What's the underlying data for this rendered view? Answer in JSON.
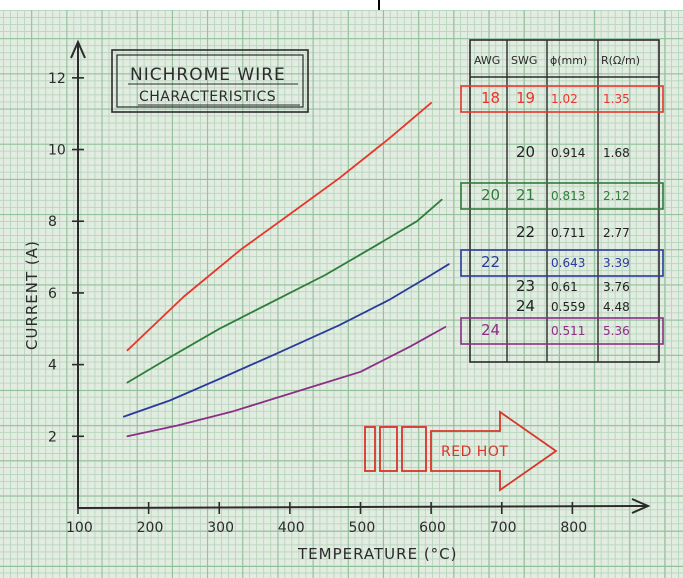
{
  "chart_data": {
    "type": "line",
    "title": "NICHROME WIRE",
    "subtitle": "CHARACTERISTICS",
    "xlabel": "TEMPERATURE (°C)",
    "ylabel": "CURRENT (A)",
    "xlim": [
      100,
      900
    ],
    "ylim": [
      0,
      13
    ],
    "xticks": [
      "100",
      "200",
      "300",
      "400",
      "500",
      "600",
      "700",
      "800"
    ],
    "yticks": [
      "2",
      "4",
      "6",
      "8",
      "10",
      "12"
    ],
    "grid": true,
    "series": [
      {
        "name": "18",
        "color": "#e8352b",
        "x": [
          170,
          250,
          330,
          400,
          470,
          540,
          600
        ],
        "y": [
          4.4,
          5.9,
          7.2,
          8.2,
          9.2,
          10.3,
          11.3
        ]
      },
      {
        "name": "20",
        "color": "#2e7d3a",
        "x": [
          170,
          230,
          300,
          370,
          450,
          520,
          580,
          615
        ],
        "y": [
          3.5,
          4.2,
          5.0,
          5.7,
          6.5,
          7.3,
          8.0,
          8.6
        ]
      },
      {
        "name": "22",
        "color": "#2a3b9c",
        "x": [
          165,
          230,
          300,
          380,
          470,
          540,
          600,
          625
        ],
        "y": [
          2.55,
          3.0,
          3.6,
          4.3,
          5.1,
          5.8,
          6.5,
          6.8
        ]
      },
      {
        "name": "24",
        "color": "#8a2f86",
        "x": [
          170,
          240,
          320,
          410,
          500,
          570,
          620
        ],
        "y": [
          2.0,
          2.3,
          2.7,
          3.25,
          3.8,
          4.5,
          5.05
        ]
      }
    ],
    "annotations": [
      "RED HOT"
    ]
  },
  "table": {
    "headers": [
      "AWG",
      "SWG",
      "ϕ(mm)",
      "R(Ω/m)"
    ],
    "rows": [
      {
        "awg": "18",
        "swg": "19",
        "dia": "1.02",
        "r": "1.35",
        "color": "#e8352b",
        "boxed": true
      },
      {
        "awg": "",
        "swg": "20",
        "dia": "0.914",
        "r": "1.68",
        "color": "#222222",
        "boxed": false
      },
      {
        "awg": "20",
        "swg": "21",
        "dia": "0.813",
        "r": "2.12",
        "color": "#2e7d3a",
        "boxed": true
      },
      {
        "awg": "",
        "swg": "22",
        "dia": "0.711",
        "r": "2.77",
        "color": "#222222",
        "boxed": false
      },
      {
        "awg": "22",
        "swg": "",
        "dia": "0.643",
        "r": "3.39",
        "color": "#2a3b9c",
        "boxed": true
      },
      {
        "awg": "",
        "swg": "23",
        "dia": "0.61",
        "r": "3.76",
        "color": "#222222",
        "boxed": false
      },
      {
        "awg": "",
        "swg": "24",
        "dia": "0.559",
        "r": "4.48",
        "color": "#222222",
        "boxed": false
      },
      {
        "awg": "24",
        "swg": "",
        "dia": "0.511",
        "r": "5.36",
        "color": "#8a2f86",
        "boxed": true
      }
    ]
  }
}
